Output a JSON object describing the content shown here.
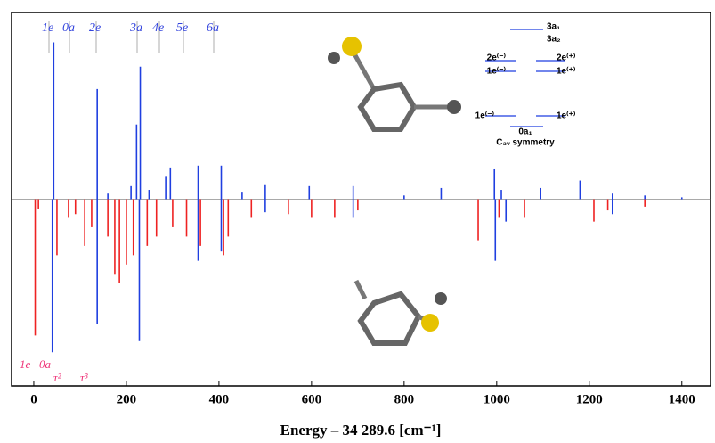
{
  "chart_data": {
    "type": "spectrum",
    "x_label": "Energy – 34 289.6 [cm⁻¹]",
    "xlim": [
      -48,
      1462
    ],
    "xticks": [
      0,
      200,
      400,
      600,
      800,
      1000,
      1200,
      1400
    ],
    "ylim": [
      -1,
      1
    ],
    "series": [
      {
        "color": "#1f3fe0",
        "x": [
          43,
          137,
          160,
          210,
          222,
          230,
          249,
          285,
          295,
          355,
          405,
          450,
          500,
          595,
          690,
          800,
          880,
          995,
          1010,
          1095,
          1180,
          1250,
          1320,
          1400
        ],
        "values": [
          0.84,
          0.59,
          0.03,
          0.07,
          0.4,
          0.71,
          0.05,
          0.12,
          0.17,
          0.18,
          0.18,
          0.04,
          0.08,
          0.07,
          0.07,
          0.02,
          0.06,
          0.16,
          0.05,
          0.06,
          0.1,
          0.03,
          0.02,
          0.01
        ]
      },
      {
        "color": "#ee2222",
        "x": [
          3,
          10,
          50,
          75,
          90,
          110,
          125,
          160,
          175,
          185,
          200,
          215,
          245,
          265,
          300,
          330,
          360,
          410,
          420,
          470,
          550,
          600,
          650,
          700,
          960,
          1005,
          1060,
          1210,
          1240,
          1320
        ],
        "values": [
          -0.73,
          -0.05,
          -0.3,
          -0.1,
          -0.08,
          -0.25,
          -0.15,
          -0.2,
          -0.4,
          -0.45,
          -0.35,
          -0.3,
          -0.25,
          -0.2,
          -0.15,
          -0.2,
          -0.25,
          -0.3,
          -0.2,
          -0.1,
          -0.08,
          -0.1,
          -0.1,
          -0.06,
          -0.22,
          -0.1,
          -0.1,
          -0.12,
          -0.06,
          -0.04
        ]
      },
      {
        "color": "#1f3fe0",
        "x": [
          40,
          137,
          228,
          355,
          405,
          500,
          690,
          997,
          1020,
          1250
        ],
        "values": [
          -0.82,
          -0.67,
          -0.76,
          -0.33,
          -0.28,
          -0.07,
          -0.1,
          -0.33,
          -0.12,
          -0.08
        ]
      }
    ],
    "annotations_upper": [
      "1e",
      "0a",
      "2e",
      "3a",
      "4e",
      "5e",
      "6a"
    ],
    "annotations_lower": [
      "1e",
      "0a",
      "τ²",
      "τ³"
    ],
    "level_diagram": [
      "3a₁",
      "3a₂",
      "2e⁽⁻⁾",
      "1e⁽⁻⁾",
      "2e⁽⁺⁾",
      "1e⁽⁺⁾",
      "1e⁽⁻⁾",
      "1e⁽⁺⁾",
      "0a₁",
      "C₃ᵥ symmetry"
    ]
  }
}
